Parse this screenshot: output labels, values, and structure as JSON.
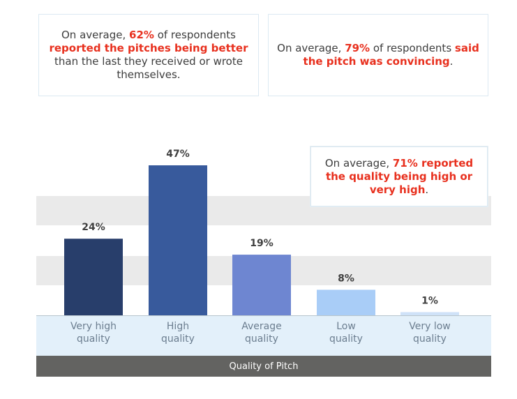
{
  "callouts": [
    {
      "parts": [
        {
          "t": "On average, ",
          "hl": false
        },
        {
          "t": "62%",
          "hl": true
        },
        {
          "t": " of respondents ",
          "hl": false
        },
        {
          "t": "reported the pitches being better",
          "hl": true
        },
        {
          "t": " than the last they received or wrote themselves.",
          "hl": false
        }
      ]
    },
    {
      "parts": [
        {
          "t": "On average, ",
          "hl": false
        },
        {
          "t": "79%",
          "hl": true
        },
        {
          "t": " of respondents ",
          "hl": false
        },
        {
          "t": "said the pitch was convincing",
          "hl": true
        },
        {
          "t": ".",
          "hl": false
        }
      ]
    },
    {
      "parts": [
        {
          "t": "On average, ",
          "hl": false
        },
        {
          "t": "71% reported the quality being high or very high",
          "hl": true
        },
        {
          "t": ".",
          "hl": false
        }
      ]
    }
  ],
  "chart_data": {
    "type": "bar",
    "title": "",
    "xlabel": "Quality of Pitch",
    "ylabel": "",
    "categories": [
      "Very high quality",
      "High quality",
      "Average quality",
      "Low quality",
      "Very low quality"
    ],
    "category_lines": [
      [
        "Very high",
        "quality"
      ],
      [
        "High",
        "quality"
      ],
      [
        "Average",
        "quality"
      ],
      [
        "Low",
        "quality"
      ],
      [
        "Very low",
        "quality"
      ]
    ],
    "values": [
      24,
      47,
      19,
      8,
      1
    ],
    "value_labels": [
      "24%",
      "47%",
      "19%",
      "8%",
      "1%"
    ],
    "unit": "%",
    "ylim": [
      0,
      50
    ],
    "bar_colors": [
      "#283e6b",
      "#385a9c",
      "#6e86d1",
      "#a9cdf7",
      "#cfe2f8"
    ],
    "label_color": "#3f3f3f"
  }
}
